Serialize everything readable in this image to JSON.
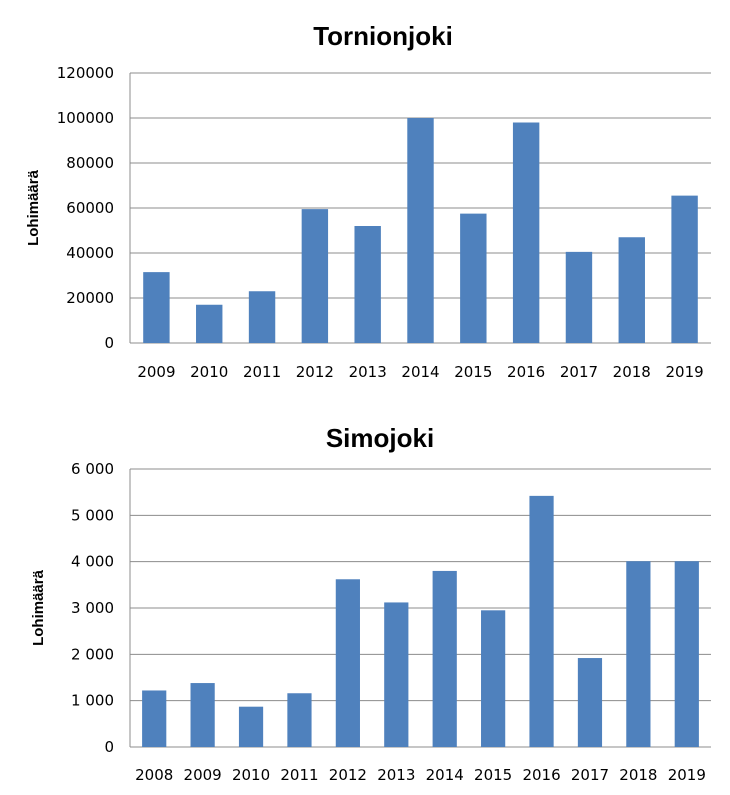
{
  "chart_data": [
    {
      "type": "bar",
      "title": "Tornionjoki",
      "xlabel": "",
      "ylabel": "Lohimäärä",
      "categories": [
        "2009",
        "2010",
        "2011",
        "2012",
        "2013",
        "2014",
        "2015",
        "2016",
        "2017",
        "2018",
        "2019"
      ],
      "values": [
        31500,
        17000,
        23000,
        59500,
        52000,
        100000,
        57500,
        98000,
        40500,
        47000,
        65500
      ],
      "ylim": [
        0,
        120000
      ],
      "yticks": [
        "0",
        "20000",
        "40000",
        "60000",
        "80000",
        "100000",
        "120000"
      ],
      "grid": true,
      "bar_color": "#4f81bd"
    },
    {
      "type": "bar",
      "title": "Simojoki",
      "xlabel": "",
      "ylabel": "Lohimäärä",
      "categories": [
        "2008",
        "2009",
        "2010",
        "2011",
        "2012",
        "2013",
        "2014",
        "2015",
        "2016",
        "2017",
        "2018",
        "2019"
      ],
      "values": [
        1220,
        1380,
        870,
        1160,
        3620,
        3120,
        3800,
        2950,
        5420,
        1920,
        4010,
        4010
      ],
      "ylim": [
        0,
        6000
      ],
      "yticks": [
        "0",
        "1 000",
        "2 000",
        "3 000",
        "4 000",
        "5 000",
        "6 000"
      ],
      "grid": true,
      "bar_color": "#4f81bd"
    }
  ]
}
